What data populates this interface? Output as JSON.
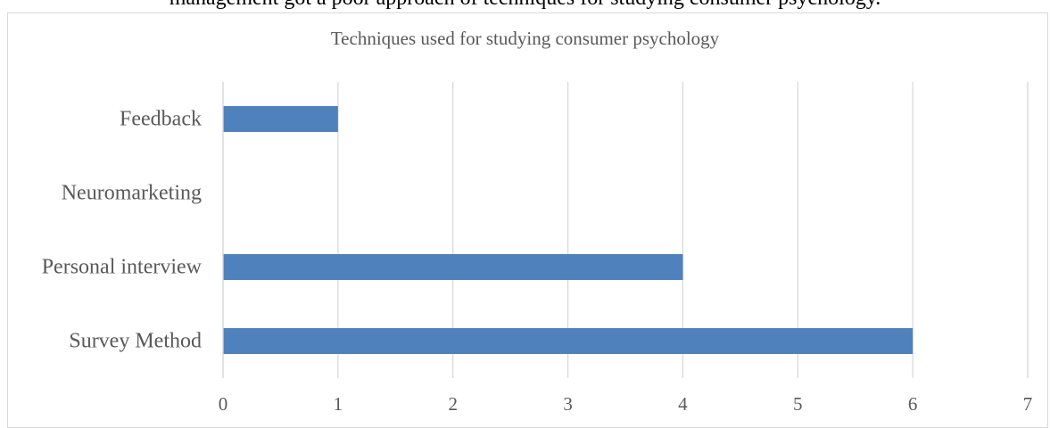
{
  "header_text": "management got a poor approach of techniques for studying consumer psychology.",
  "chart_data": {
    "type": "bar",
    "orientation": "horizontal",
    "title": "Techniques used for studying consumer psychology",
    "categories": [
      "Survey Method",
      "Personal interview",
      "Neuromarketing",
      "Feedback"
    ],
    "values": [
      6,
      4,
      0,
      1
    ],
    "xlabel": "",
    "ylabel": "",
    "xlim": [
      0,
      7
    ],
    "xticks": [
      "0",
      "1",
      "2",
      "3",
      "4",
      "5",
      "6",
      "7"
    ],
    "grid": true,
    "legend": "none",
    "colors": {
      "bar": "#4f81bd",
      "grid": "#d9d9d9",
      "text": "#595959"
    }
  }
}
